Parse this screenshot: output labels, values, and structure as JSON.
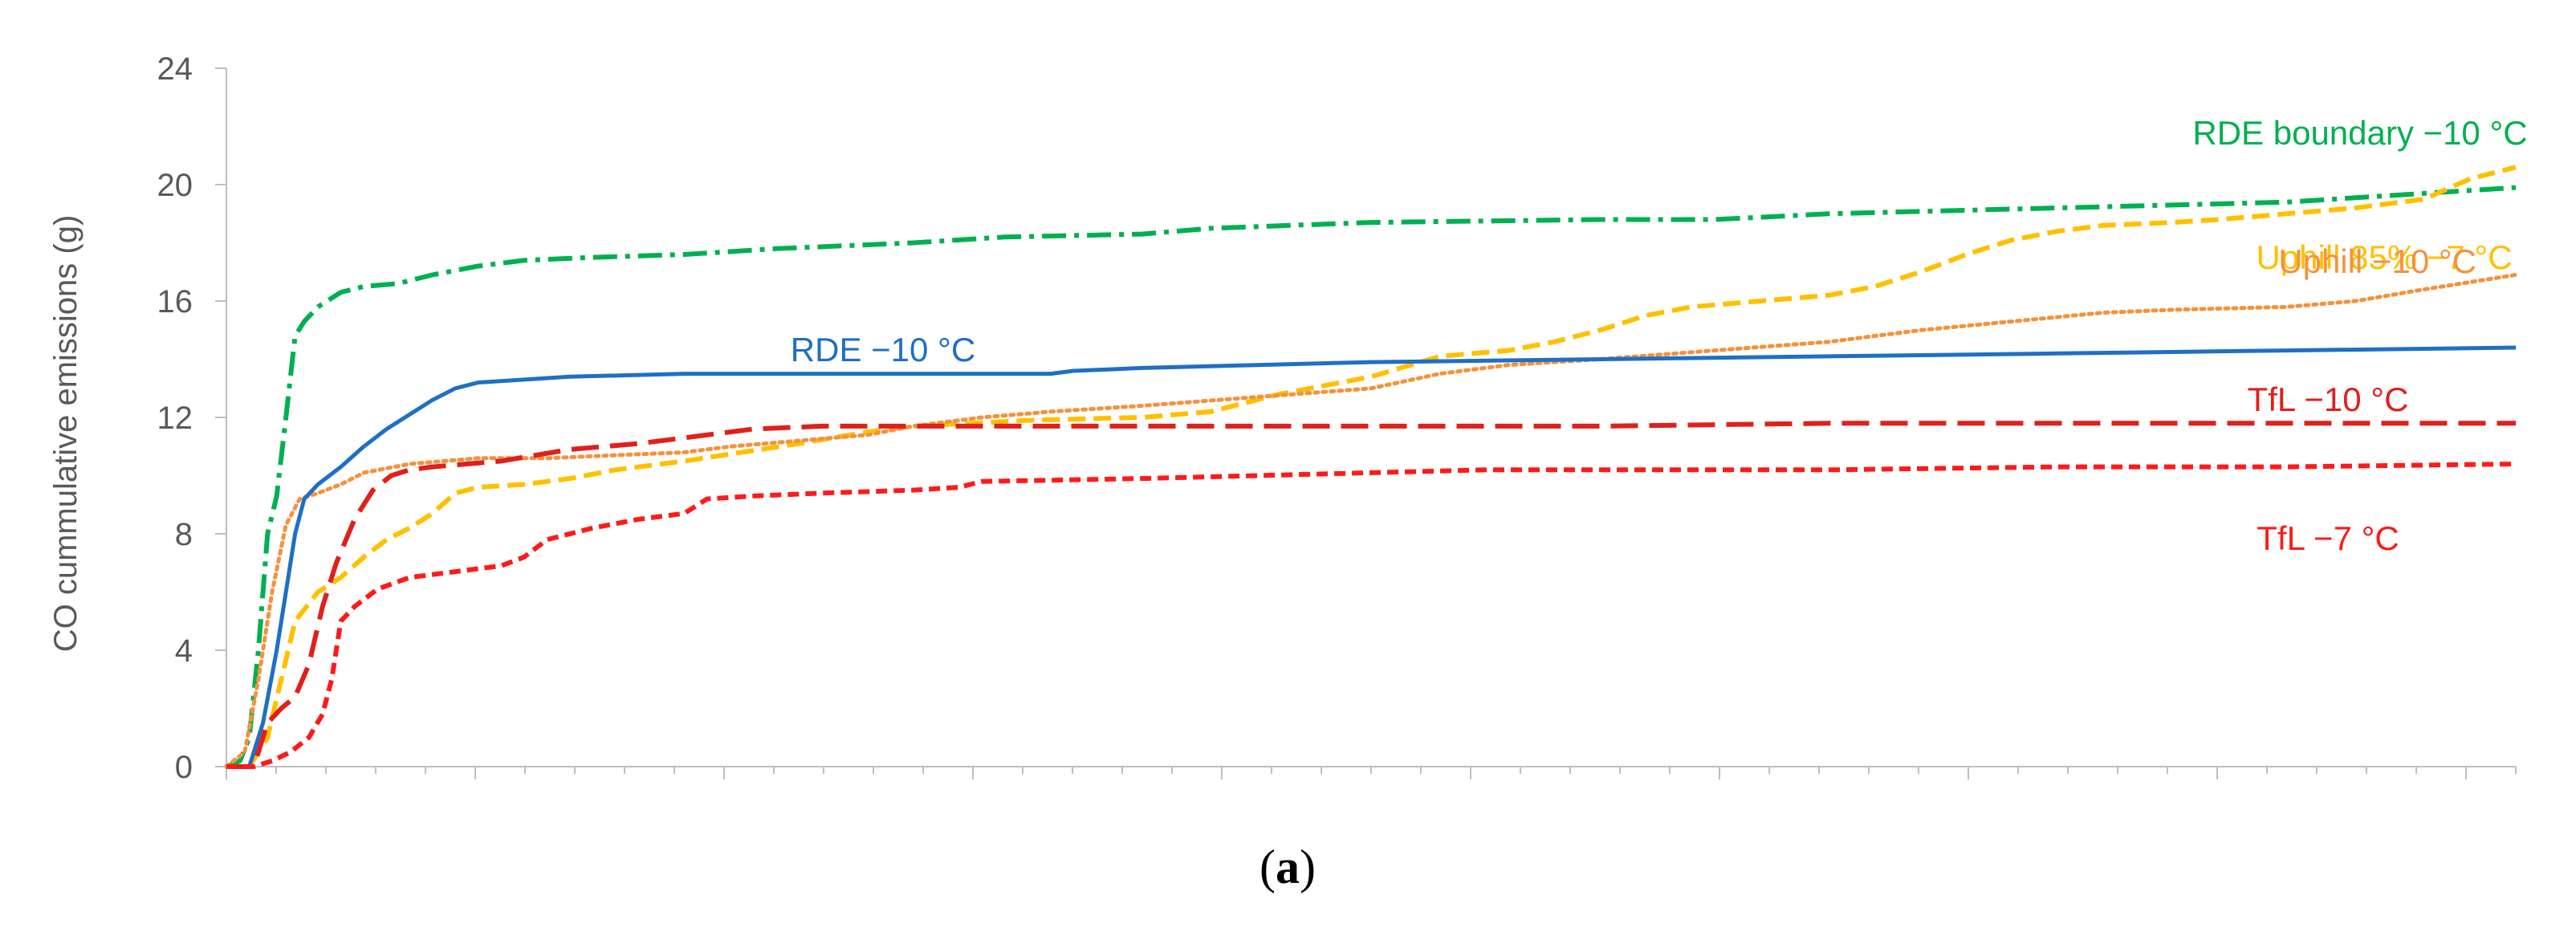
{
  "chart_data": {
    "type": "line",
    "ylabel": "CO cummulative emissions (g)",
    "xlabel": "",
    "xlim": [
      0,
      1000
    ],
    "ylim": [
      0,
      24
    ],
    "y_ticks": [
      0,
      4,
      8,
      12,
      16,
      20,
      24
    ],
    "x_tick_count": 46,
    "grid": false,
    "legend": "none",
    "caption_letter": "a",
    "series": [
      {
        "name": "RDE boundary −10 °C",
        "color": "#00b050",
        "dash": "dash-dot",
        "points": [
          [
            0,
            0
          ],
          [
            6,
            0.2
          ],
          [
            10,
            1
          ],
          [
            14,
            4
          ],
          [
            18,
            8
          ],
          [
            22,
            9.3
          ],
          [
            26,
            12
          ],
          [
            30,
            14.8
          ],
          [
            34,
            15.3
          ],
          [
            40,
            15.8
          ],
          [
            50,
            16.3
          ],
          [
            60,
            16.5
          ],
          [
            75,
            16.6
          ],
          [
            90,
            16.9
          ],
          [
            110,
            17.2
          ],
          [
            130,
            17.4
          ],
          [
            160,
            17.5
          ],
          [
            200,
            17.6
          ],
          [
            240,
            17.8
          ],
          [
            300,
            18.0
          ],
          [
            340,
            18.2
          ],
          [
            400,
            18.3
          ],
          [
            430,
            18.5
          ],
          [
            500,
            18.7
          ],
          [
            600,
            18.8
          ],
          [
            650,
            18.8
          ],
          [
            700,
            19.0
          ],
          [
            800,
            19.2
          ],
          [
            900,
            19.4
          ],
          [
            1000,
            19.9
          ]
        ]
      },
      {
        "name": "Uphill 85% −7 °C",
        "color": "#ffc000",
        "dash": "dash",
        "points": [
          [
            0,
            0
          ],
          [
            10,
            0
          ],
          [
            18,
            1
          ],
          [
            24,
            3
          ],
          [
            30,
            5
          ],
          [
            40,
            6
          ],
          [
            50,
            6.5
          ],
          [
            60,
            7.2
          ],
          [
            70,
            7.8
          ],
          [
            80,
            8.2
          ],
          [
            90,
            8.7
          ],
          [
            100,
            9.4
          ],
          [
            110,
            9.6
          ],
          [
            130,
            9.7
          ],
          [
            150,
            9.9
          ],
          [
            170,
            10.2
          ],
          [
            200,
            10.5
          ],
          [
            250,
            11.1
          ],
          [
            280,
            11.5
          ],
          [
            300,
            11.7
          ],
          [
            350,
            11.9
          ],
          [
            400,
            12.0
          ],
          [
            430,
            12.2
          ],
          [
            460,
            12.8
          ],
          [
            500,
            13.4
          ],
          [
            530,
            14.1
          ],
          [
            560,
            14.3
          ],
          [
            580,
            14.6
          ],
          [
            600,
            15.0
          ],
          [
            620,
            15.5
          ],
          [
            640,
            15.8
          ],
          [
            670,
            16.0
          ],
          [
            700,
            16.2
          ],
          [
            720,
            16.5
          ],
          [
            740,
            17.0
          ],
          [
            760,
            17.6
          ],
          [
            780,
            18.1
          ],
          [
            800,
            18.4
          ],
          [
            820,
            18.6
          ],
          [
            850,
            18.7
          ],
          [
            870,
            18.8
          ],
          [
            900,
            19.0
          ],
          [
            930,
            19.2
          ],
          [
            960,
            19.5
          ],
          [
            980,
            20.2
          ],
          [
            1000,
            20.6
          ]
        ]
      },
      {
        "name": "Uphill −10 °C",
        "color": "#f4923e",
        "dash": "dot",
        "points": [
          [
            0,
            0
          ],
          [
            8,
            0.5
          ],
          [
            14,
            3
          ],
          [
            20,
            6
          ],
          [
            26,
            8.3
          ],
          [
            32,
            9.2
          ],
          [
            40,
            9.4
          ],
          [
            50,
            9.7
          ],
          [
            60,
            10.1
          ],
          [
            80,
            10.4
          ],
          [
            110,
            10.6
          ],
          [
            140,
            10.6
          ],
          [
            170,
            10.7
          ],
          [
            200,
            10.8
          ],
          [
            220,
            11.0
          ],
          [
            250,
            11.2
          ],
          [
            280,
            11.4
          ],
          [
            300,
            11.7
          ],
          [
            330,
            12.0
          ],
          [
            360,
            12.2
          ],
          [
            400,
            12.4
          ],
          [
            450,
            12.7
          ],
          [
            500,
            13.0
          ],
          [
            530,
            13.5
          ],
          [
            560,
            13.8
          ],
          [
            600,
            14.0
          ],
          [
            650,
            14.3
          ],
          [
            700,
            14.6
          ],
          [
            740,
            15.0
          ],
          [
            780,
            15.3
          ],
          [
            820,
            15.6
          ],
          [
            850,
            15.7
          ],
          [
            900,
            15.8
          ],
          [
            930,
            16.0
          ],
          [
            960,
            16.4
          ],
          [
            1000,
            16.9
          ]
        ]
      },
      {
        "name": "RDE −10 °C",
        "color": "#1f6fc5",
        "dash": "solid",
        "points": [
          [
            0,
            0
          ],
          [
            10,
            0
          ],
          [
            16,
            1.5
          ],
          [
            22,
            4
          ],
          [
            26,
            6
          ],
          [
            30,
            8
          ],
          [
            34,
            9.2
          ],
          [
            40,
            9.7
          ],
          [
            50,
            10.3
          ],
          [
            60,
            11
          ],
          [
            70,
            11.6
          ],
          [
            80,
            12.1
          ],
          [
            90,
            12.6
          ],
          [
            100,
            13
          ],
          [
            110,
            13.2
          ],
          [
            130,
            13.3
          ],
          [
            150,
            13.4
          ],
          [
            200,
            13.5
          ],
          [
            300,
            13.5
          ],
          [
            360,
            13.5
          ],
          [
            370,
            13.6
          ],
          [
            400,
            13.7
          ],
          [
            450,
            13.8
          ],
          [
            500,
            13.9
          ],
          [
            600,
            14.0
          ],
          [
            700,
            14.1
          ],
          [
            800,
            14.2
          ],
          [
            900,
            14.3
          ],
          [
            1000,
            14.4
          ]
        ]
      },
      {
        "name": "TfL −10 °C",
        "color": "#e0201b",
        "dash": "longdash",
        "points": [
          [
            0,
            0
          ],
          [
            12,
            0
          ],
          [
            18,
            1.5
          ],
          [
            24,
            2
          ],
          [
            30,
            2.4
          ],
          [
            36,
            3.5
          ],
          [
            42,
            5.5
          ],
          [
            48,
            7
          ],
          [
            56,
            8.5
          ],
          [
            64,
            9.5
          ],
          [
            72,
            10
          ],
          [
            80,
            10.2
          ],
          [
            90,
            10.3
          ],
          [
            120,
            10.5
          ],
          [
            150,
            10.9
          ],
          [
            180,
            11.1
          ],
          [
            200,
            11.3
          ],
          [
            230,
            11.6
          ],
          [
            260,
            11.7
          ],
          [
            300,
            11.7
          ],
          [
            400,
            11.7
          ],
          [
            500,
            11.7
          ],
          [
            600,
            11.7
          ],
          [
            700,
            11.8
          ],
          [
            800,
            11.8
          ],
          [
            900,
            11.8
          ],
          [
            1000,
            11.8
          ]
        ]
      },
      {
        "name": "TfL −7 °C",
        "color": "#ff1a1a",
        "dash": "shortdash",
        "points": [
          [
            0,
            0
          ],
          [
            12,
            0
          ],
          [
            20,
            0.2
          ],
          [
            28,
            0.5
          ],
          [
            36,
            1
          ],
          [
            42,
            1.8
          ],
          [
            46,
            3
          ],
          [
            50,
            5
          ],
          [
            56,
            5.5
          ],
          [
            66,
            6.1
          ],
          [
            80,
            6.5
          ],
          [
            100,
            6.7
          ],
          [
            120,
            6.9
          ],
          [
            130,
            7.2
          ],
          [
            140,
            7.8
          ],
          [
            160,
            8.2
          ],
          [
            180,
            8.5
          ],
          [
            200,
            8.7
          ],
          [
            210,
            9.2
          ],
          [
            230,
            9.3
          ],
          [
            260,
            9.4
          ],
          [
            300,
            9.5
          ],
          [
            320,
            9.6
          ],
          [
            330,
            9.8
          ],
          [
            400,
            9.9
          ],
          [
            450,
            10.0
          ],
          [
            500,
            10.1
          ],
          [
            550,
            10.2
          ],
          [
            700,
            10.2
          ],
          [
            800,
            10.3
          ],
          [
            900,
            10.3
          ],
          [
            1000,
            10.4
          ]
        ]
      }
    ]
  }
}
